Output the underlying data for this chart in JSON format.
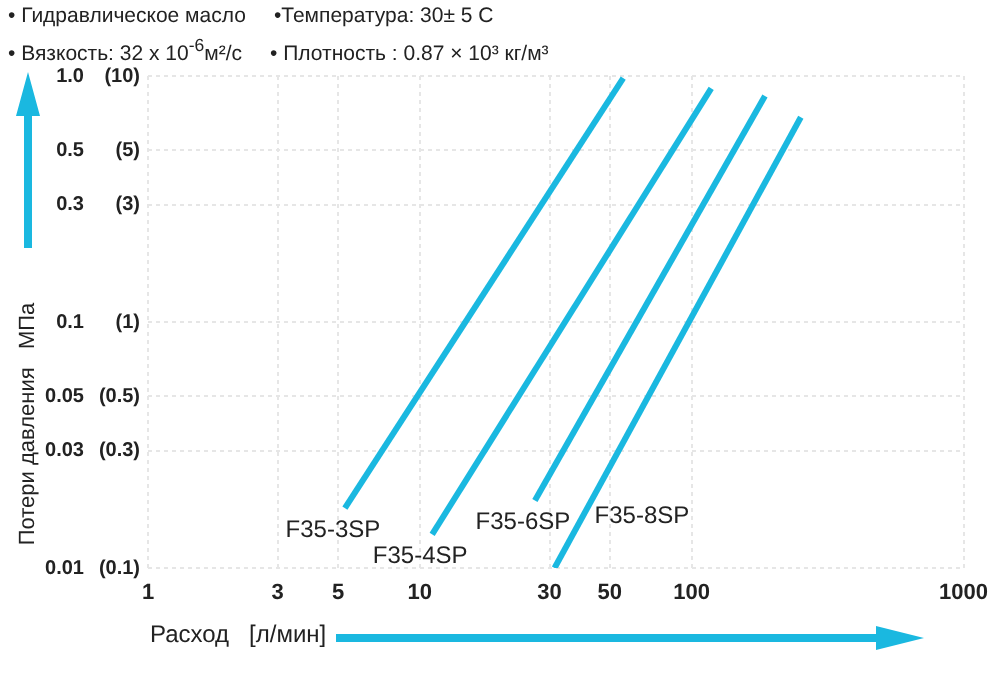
{
  "chart_data": {
    "type": "line",
    "xlabel": "Расход   [л/мин]",
    "ylabel": "Потери давления   МПа",
    "annotations": [
      "• Гидравлическое масло",
      "•Температура: 30± 5 C",
      "• Вязкость:  32 x 10$^{-6}$м²/с",
      "• Плотность : 0.87 × 10³ кг/м³",
      "(0.1)",
      "(0.3)",
      "(0.5)",
      "(1)",
      "(3)",
      "(5)",
      "(10)"
    ],
    "series": [
      {
        "name": "F35-3SP",
        "color": "#1ab8e0",
        "x": [
          5.3,
          56
        ],
        "values": [
          0.0175,
          0.98
        ]
      },
      {
        "name": "F35-4SP",
        "color": "#1ab8e0",
        "x": [
          11.1,
          118
        ],
        "values": [
          0.0137,
          0.89
        ]
      },
      {
        "name": "F35-6SP",
        "color": "#1ab8e0",
        "x": [
          26.5,
          186
        ],
        "values": [
          0.0188,
          0.83
        ]
      },
      {
        "name": "F35-8SP",
        "color": "#1ab8e0",
        "x": [
          31.3,
          252
        ],
        "values": [
          0.01,
          0.68
        ]
      }
    ],
    "log": "xy",
    "xlim": [
      1,
      1000
    ],
    "ylim": [
      0.01,
      1
    ],
    "xticks": [
      1,
      3,
      5,
      10,
      30,
      50,
      100,
      1000
    ],
    "yticks": [
      0.01,
      0.03,
      0.05,
      0.1,
      0.3,
      0.5,
      {
        "value": 1,
        "label": "1.0"
      }
    ],
    "grid": true,
    "legend": false,
    "marker": "none",
    "line_style": "solid"
  }
}
